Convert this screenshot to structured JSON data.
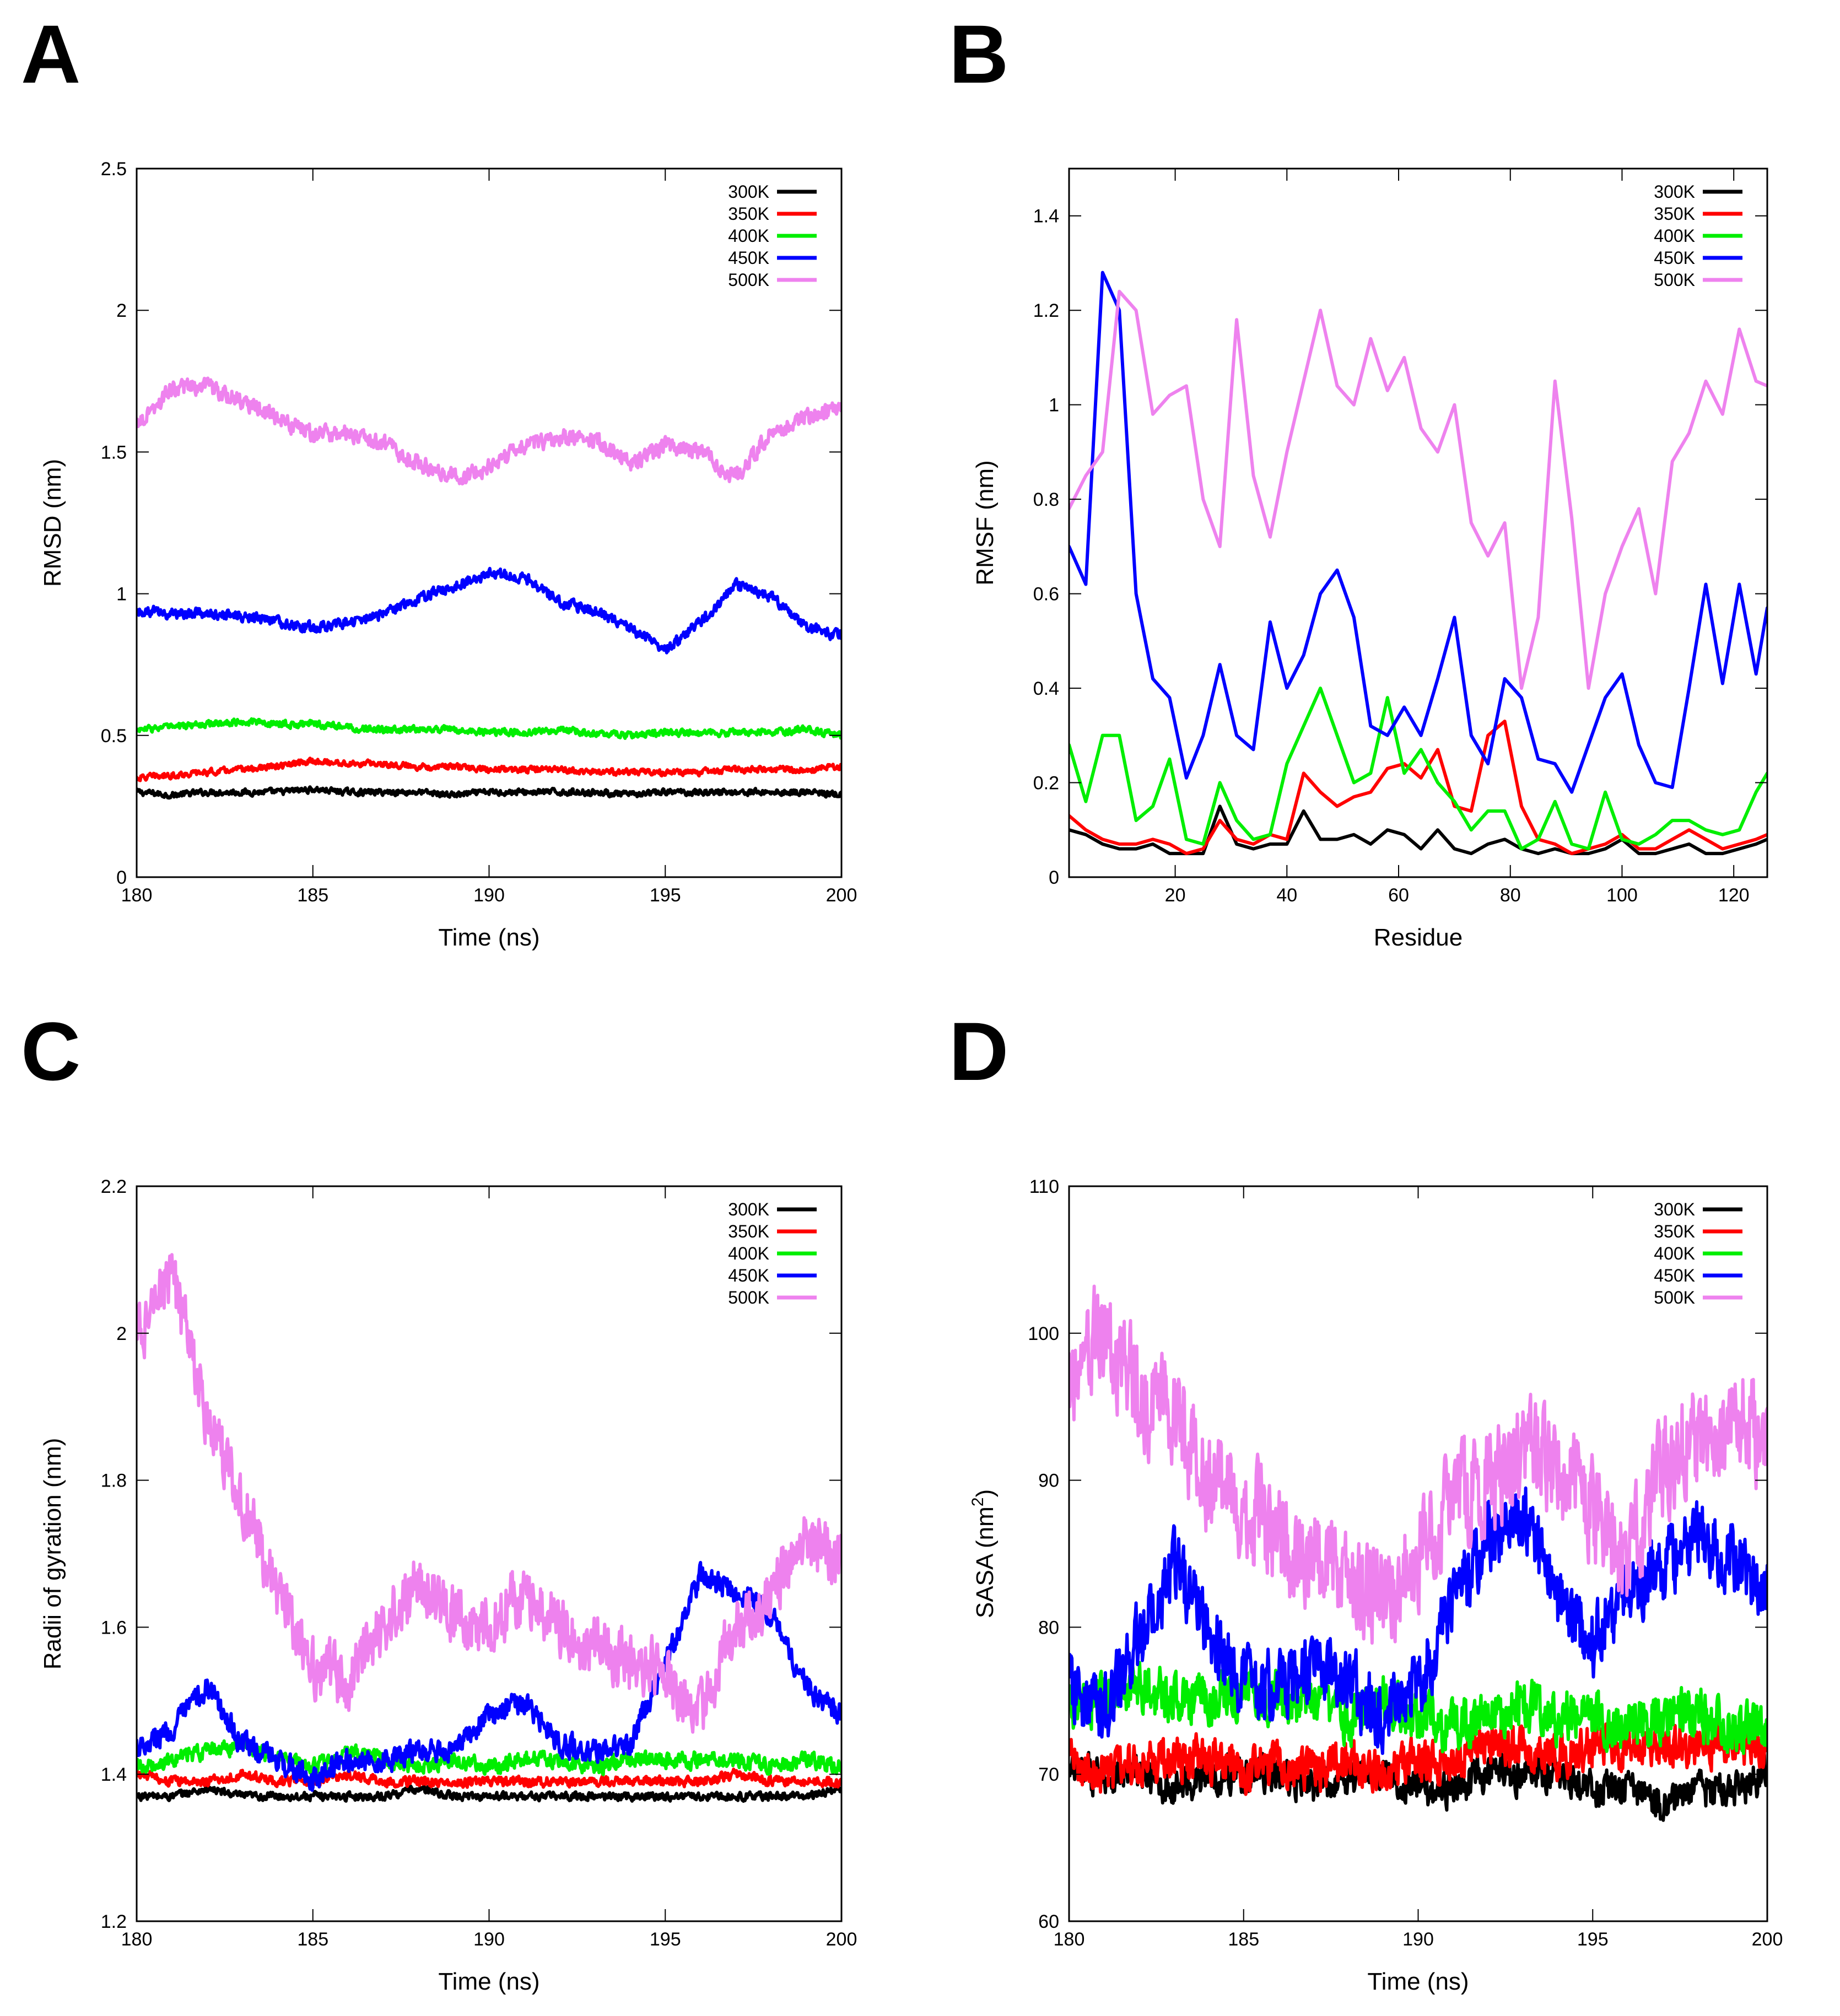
{
  "figure": {
    "panel_letters": [
      "A",
      "B",
      "C",
      "D"
    ]
  },
  "series_names": [
    "300K",
    "350K",
    "400K",
    "450K",
    "500K"
  ],
  "series_colors": [
    "#000000",
    "#ff0000",
    "#00ee00",
    "#0000ff",
    "#ee82ee"
  ],
  "chart_data": [
    {
      "panel": "A",
      "type": "line",
      "title": "",
      "xlabel": "Time (ns)",
      "ylabel": "RMSD (nm)",
      "xlim": [
        180,
        200
      ],
      "ylim": [
        0,
        2.5
      ],
      "xticks": [
        180,
        185,
        190,
        195,
        200
      ],
      "yticks": [
        0,
        0.5,
        1,
        1.5,
        2,
        2.5
      ],
      "ytick_labels": [
        "0",
        "0.5",
        "1",
        "1.5",
        "2",
        "2.5"
      ],
      "legend": "top-right",
      "noise": [
        0.008,
        0.008,
        0.009,
        0.014,
        0.022
      ],
      "x": [
        180,
        181,
        182,
        183,
        184,
        185,
        186,
        187,
        188,
        189,
        190,
        191,
        192,
        193,
        194,
        195,
        196,
        197,
        198,
        199,
        200
      ],
      "series": [
        {
          "name": "300K",
          "values": [
            0.3,
            0.29,
            0.3,
            0.3,
            0.3,
            0.31,
            0.3,
            0.3,
            0.3,
            0.29,
            0.3,
            0.3,
            0.3,
            0.3,
            0.29,
            0.3,
            0.3,
            0.3,
            0.3,
            0.3,
            0.29
          ]
        },
        {
          "name": "350K",
          "values": [
            0.35,
            0.36,
            0.37,
            0.38,
            0.39,
            0.41,
            0.4,
            0.4,
            0.39,
            0.39,
            0.38,
            0.38,
            0.38,
            0.37,
            0.37,
            0.37,
            0.37,
            0.38,
            0.38,
            0.38,
            0.39
          ]
        },
        {
          "name": "400K",
          "values": [
            0.52,
            0.53,
            0.54,
            0.55,
            0.54,
            0.54,
            0.53,
            0.52,
            0.52,
            0.52,
            0.51,
            0.51,
            0.52,
            0.51,
            0.5,
            0.51,
            0.51,
            0.51,
            0.51,
            0.52,
            0.5
          ]
        },
        {
          "name": "450K",
          "values": [
            0.94,
            0.93,
            0.93,
            0.92,
            0.9,
            0.88,
            0.9,
            0.93,
            0.98,
            1.03,
            1.07,
            1.06,
            0.97,
            0.94,
            0.88,
            0.8,
            0.9,
            1.03,
            0.99,
            0.88,
            0.85
          ]
        },
        {
          "name": "500K",
          "values": [
            1.6,
            1.72,
            1.73,
            1.68,
            1.62,
            1.56,
            1.57,
            1.53,
            1.46,
            1.41,
            1.45,
            1.52,
            1.55,
            1.54,
            1.46,
            1.52,
            1.5,
            1.41,
            1.57,
            1.62,
            1.66
          ]
        }
      ]
    },
    {
      "panel": "B",
      "type": "line",
      "title": "",
      "xlabel": "Residue",
      "ylabel": "RMSF (nm)",
      "xlim": [
        1,
        126
      ],
      "ylim": [
        0,
        1.5
      ],
      "xticks": [
        20,
        40,
        60,
        80,
        100,
        120
      ],
      "yticks": [
        0,
        0.2,
        0.4,
        0.6,
        0.8,
        1,
        1.2,
        1.4
      ],
      "ytick_labels": [
        "0",
        "0.2",
        "0.4",
        "0.6",
        "0.8",
        "1",
        "1.2",
        "1.4"
      ],
      "legend": "top-right",
      "noise": [
        0,
        0,
        0,
        0,
        0
      ],
      "x": [
        1,
        4,
        7,
        10,
        13,
        16,
        19,
        22,
        25,
        28,
        31,
        34,
        37,
        40,
        43,
        46,
        49,
        52,
        55,
        58,
        61,
        64,
        67,
        70,
        73,
        76,
        79,
        82,
        85,
        88,
        91,
        94,
        97,
        100,
        103,
        106,
        109,
        112,
        115,
        118,
        121,
        124,
        126
      ],
      "series": [
        {
          "name": "300K",
          "values": [
            0.1,
            0.09,
            0.07,
            0.06,
            0.06,
            0.07,
            0.05,
            0.05,
            0.05,
            0.15,
            0.07,
            0.06,
            0.07,
            0.07,
            0.14,
            0.08,
            0.08,
            0.09,
            0.07,
            0.1,
            0.09,
            0.06,
            0.1,
            0.06,
            0.05,
            0.07,
            0.08,
            0.06,
            0.05,
            0.06,
            0.05,
            0.05,
            0.06,
            0.08,
            0.05,
            0.05,
            0.06,
            0.07,
            0.05,
            0.05,
            0.06,
            0.07,
            0.08
          ]
        },
        {
          "name": "350K",
          "values": [
            0.13,
            0.1,
            0.08,
            0.07,
            0.07,
            0.08,
            0.07,
            0.05,
            0.06,
            0.12,
            0.08,
            0.07,
            0.09,
            0.08,
            0.22,
            0.18,
            0.15,
            0.17,
            0.18,
            0.23,
            0.24,
            0.21,
            0.27,
            0.15,
            0.14,
            0.3,
            0.33,
            0.15,
            0.08,
            0.07,
            0.05,
            0.06,
            0.07,
            0.09,
            0.06,
            0.06,
            0.08,
            0.1,
            0.08,
            0.06,
            0.07,
            0.08,
            0.09
          ]
        },
        {
          "name": "400K",
          "values": [
            0.28,
            0.16,
            0.3,
            0.3,
            0.12,
            0.15,
            0.25,
            0.08,
            0.07,
            0.2,
            0.12,
            0.08,
            0.09,
            0.24,
            0.32,
            0.4,
            0.3,
            0.2,
            0.22,
            0.38,
            0.22,
            0.27,
            0.2,
            0.16,
            0.1,
            0.14,
            0.14,
            0.06,
            0.08,
            0.16,
            0.07,
            0.06,
            0.18,
            0.08,
            0.07,
            0.09,
            0.12,
            0.12,
            0.1,
            0.09,
            0.1,
            0.18,
            0.22
          ]
        },
        {
          "name": "450K",
          "values": [
            0.7,
            0.62,
            1.28,
            1.2,
            0.6,
            0.42,
            0.38,
            0.21,
            0.3,
            0.45,
            0.3,
            0.27,
            0.54,
            0.4,
            0.47,
            0.6,
            0.65,
            0.55,
            0.32,
            0.3,
            0.36,
            0.3,
            0.42,
            0.55,
            0.3,
            0.24,
            0.42,
            0.38,
            0.25,
            0.24,
            0.18,
            0.28,
            0.38,
            0.43,
            0.28,
            0.2,
            0.19,
            0.4,
            0.62,
            0.41,
            0.62,
            0.43,
            0.57
          ]
        },
        {
          "name": "500K",
          "values": [
            0.78,
            0.85,
            0.9,
            1.24,
            1.2,
            0.98,
            1.02,
            1.04,
            0.8,
            0.7,
            1.18,
            0.85,
            0.72,
            0.9,
            1.05,
            1.2,
            1.04,
            1.0,
            1.14,
            1.03,
            1.1,
            0.95,
            0.9,
            1.0,
            0.75,
            0.68,
            0.75,
            0.4,
            0.55,
            1.05,
            0.76,
            0.4,
            0.6,
            0.7,
            0.78,
            0.6,
            0.88,
            0.94,
            1.05,
            0.98,
            1.16,
            1.05,
            1.04
          ]
        }
      ]
    },
    {
      "panel": "C",
      "type": "line",
      "title": "",
      "xlabel": "Time (ns)",
      "ylabel": "Radii of gyration (nm)",
      "xlim": [
        180,
        200
      ],
      "ylim": [
        1.2,
        2.2
      ],
      "xticks": [
        180,
        185,
        190,
        195,
        200
      ],
      "yticks": [
        1.2,
        1.4,
        1.6,
        1.8,
        2,
        2.2
      ],
      "ytick_labels": [
        "1.2",
        "1.4",
        "1.6",
        "1.8",
        "2",
        "2.2"
      ],
      "legend": "top-right",
      "noise": [
        0.004,
        0.005,
        0.008,
        0.012,
        0.03
      ],
      "x": [
        180,
        181,
        182,
        183,
        184,
        185,
        186,
        187,
        188,
        189,
        190,
        191,
        192,
        193,
        194,
        195,
        196,
        197,
        198,
        199,
        200
      ],
      "series": [
        {
          "name": "300K",
          "values": [
            1.37,
            1.37,
            1.38,
            1.37,
            1.37,
            1.37,
            1.37,
            1.37,
            1.38,
            1.37,
            1.37,
            1.37,
            1.37,
            1.37,
            1.37,
            1.37,
            1.37,
            1.37,
            1.37,
            1.37,
            1.38
          ]
        },
        {
          "name": "350K",
          "values": [
            1.4,
            1.39,
            1.39,
            1.4,
            1.39,
            1.39,
            1.4,
            1.39,
            1.39,
            1.39,
            1.39,
            1.39,
            1.39,
            1.39,
            1.39,
            1.39,
            1.39,
            1.4,
            1.39,
            1.39,
            1.39
          ]
        },
        {
          "name": "400K",
          "values": [
            1.41,
            1.42,
            1.43,
            1.44,
            1.42,
            1.41,
            1.43,
            1.42,
            1.41,
            1.42,
            1.41,
            1.42,
            1.42,
            1.41,
            1.42,
            1.42,
            1.42,
            1.42,
            1.41,
            1.42,
            1.41
          ]
        },
        {
          "name": "450K",
          "values": [
            1.44,
            1.46,
            1.52,
            1.44,
            1.42,
            1.39,
            1.42,
            1.42,
            1.43,
            1.43,
            1.48,
            1.5,
            1.44,
            1.43,
            1.44,
            1.55,
            1.67,
            1.65,
            1.62,
            1.52,
            1.48
          ]
        },
        {
          "name": "500K",
          "values": [
            2.0,
            2.08,
            1.88,
            1.78,
            1.64,
            1.55,
            1.52,
            1.61,
            1.66,
            1.62,
            1.6,
            1.65,
            1.6,
            1.57,
            1.55,
            1.54,
            1.48,
            1.6,
            1.65,
            1.72,
            1.68
          ]
        }
      ]
    },
    {
      "panel": "D",
      "type": "line",
      "title": "",
      "xlabel": "Time (ns)",
      "ylabel": "SASA (nm",
      "ylabel_superscript": "2",
      "ylabel_suffix": ")",
      "xlim": [
        180,
        200
      ],
      "ylim": [
        60,
        110
      ],
      "xticks": [
        180,
        185,
        190,
        195,
        200
      ],
      "yticks": [
        60,
        70,
        80,
        90,
        100,
        110
      ],
      "ytick_labels": [
        "60",
        "70",
        "80",
        "90",
        "100",
        "110"
      ],
      "legend": "top-right",
      "noise": [
        0.9,
        1.1,
        1.3,
        1.8,
        2.6
      ],
      "x": [
        180,
        181,
        182,
        183,
        184,
        185,
        186,
        187,
        188,
        189,
        190,
        191,
        192,
        193,
        194,
        195,
        196,
        197,
        198,
        199,
        200
      ],
      "series": [
        {
          "name": "300K",
          "values": [
            70,
            70,
            70,
            69,
            70,
            70,
            70,
            69,
            70,
            70,
            69,
            69,
            70,
            70,
            70,
            69,
            69,
            68,
            69,
            69,
            70
          ]
        },
        {
          "name": "350K",
          "values": [
            71,
            70,
            71,
            71,
            71,
            70,
            71,
            70,
            71,
            70,
            71,
            71,
            72,
            72,
            71,
            72,
            72,
            72,
            72,
            72,
            72
          ]
        },
        {
          "name": "400K",
          "values": [
            75,
            75,
            76,
            75,
            75,
            76,
            75,
            75,
            74,
            75,
            74,
            73,
            74,
            75,
            74,
            74,
            73,
            74,
            74,
            73,
            73
          ]
        },
        {
          "name": "450K",
          "values": [
            76,
            74,
            79,
            84,
            80,
            76,
            76,
            77,
            76,
            74,
            76,
            82,
            86,
            88,
            81,
            79,
            83,
            84,
            86,
            85,
            82
          ]
        },
        {
          "name": "500K",
          "values": [
            97,
            100,
            96,
            94,
            90,
            88,
            86,
            84,
            83,
            82,
            85,
            89,
            90,
            92,
            91,
            88,
            84,
            91,
            93,
            95,
            92
          ]
        }
      ]
    }
  ]
}
